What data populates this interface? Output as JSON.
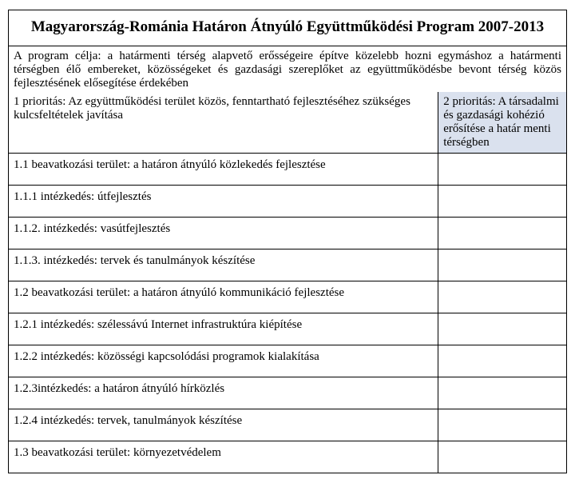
{
  "table": {
    "title": "Magyarország-Románia Határon Átnyúló Együttműködési Program 2007-2013",
    "objective": "A program célja: a határmenti térség alapvető erősségeire építve közelebb hozni egymáshoz a határmenti térségben élő embereket, közösségeket és gazdasági szereplőket az együttműködésbe bevont térség közös fejlesztésének elősegítése érdekében",
    "priority1": "1 prioritás: Az együttműködési terület közös, fenntartható fejlesztéséhez szükséges kulcsfeltételek javítása",
    "priority2": "2 prioritás: A társadalmi és gazdasági kohézió erősítése a határ menti térségben",
    "rows": {
      "r0": "1.1 beavatkozási terület: a határon átnyúló közlekedés fejlesztése",
      "r1": "1.1.1 intézkedés: útfejlesztés",
      "r2": "1.1.2. intézkedés: vasútfejlesztés",
      "r3": "1.1.3. intézkedés: tervek és tanulmányok készítése",
      "r4": "1.2 beavatkozási terület: a határon átnyúló kommunikáció fejlesztése",
      "r5": "1.2.1 intézkedés: szélessávú Internet infrastruktúra kiépítése",
      "r6": "1.2.2 intézkedés: közösségi kapcsolódási programok kialakítása",
      "r7": "1.2.3intézkedés: a határon átnyúló hírközlés",
      "r8": "1.2.4 intézkedés: tervek, tanulmányok készítése",
      "r9": "1.3 beavatkozási terület: környezetvédelem"
    },
    "colors": {
      "border": "#000000",
      "background": "#ffffff",
      "priority2_bg": "#dae1ee",
      "text": "#000000"
    },
    "layout": {
      "col_left_width_pct": 77,
      "col_right_width_pct": 23,
      "title_fontsize_pt": 19,
      "body_fontsize_pt": 15
    }
  }
}
